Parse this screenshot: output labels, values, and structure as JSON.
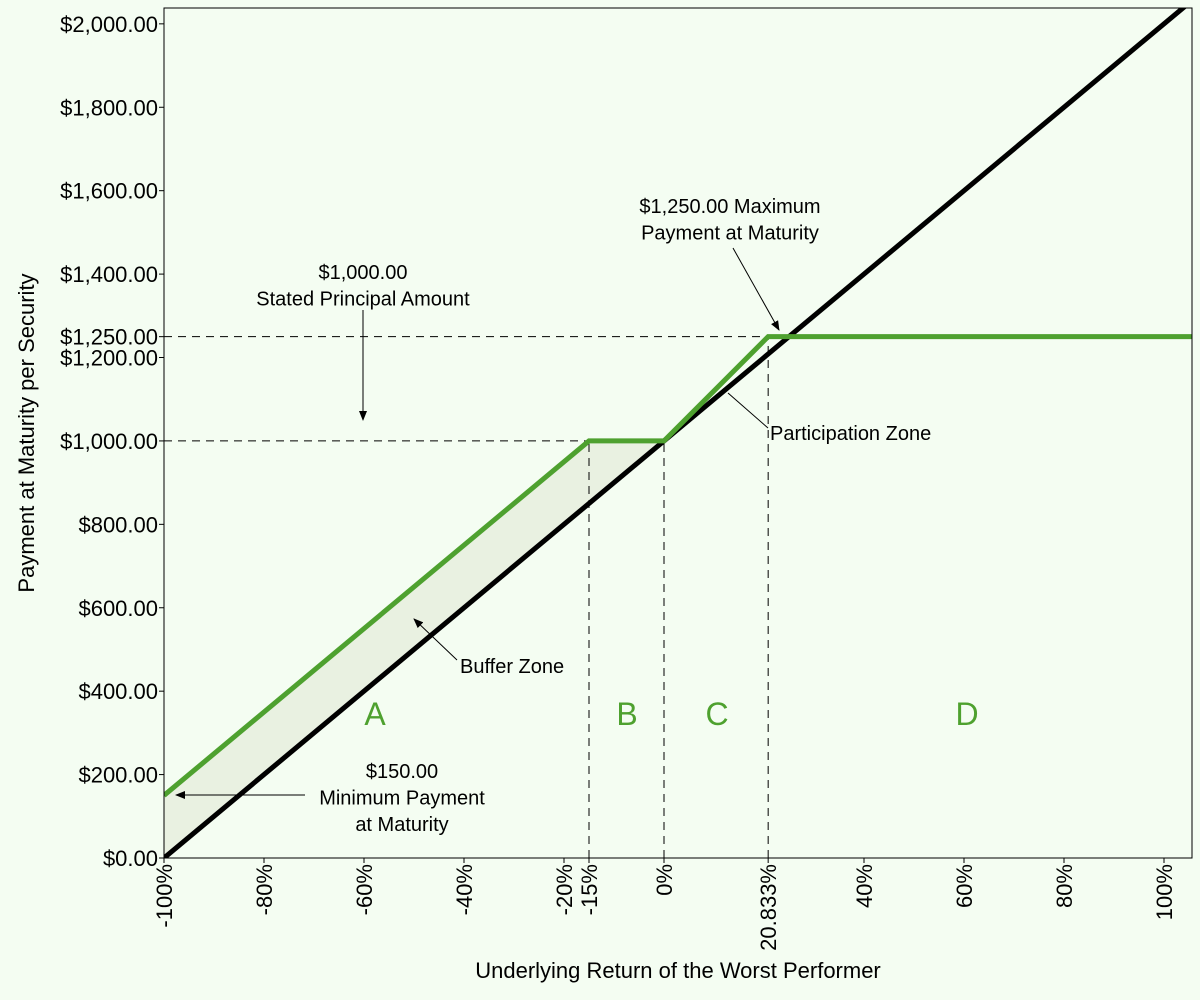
{
  "chart_data": {
    "type": "line",
    "x_label": "Underlying Return of the Worst Performer",
    "y_label": "Payment at Maturity per Security",
    "xlim": [
      -100,
      105.6
    ],
    "ylim": [
      0,
      2038
    ],
    "xticks": [
      {
        "value": -100,
        "label": "-100%"
      },
      {
        "value": -80,
        "label": "-80%"
      },
      {
        "value": -60,
        "label": "-60%"
      },
      {
        "value": -40,
        "label": "-40%"
      },
      {
        "value": -20,
        "label": "-20%"
      },
      {
        "value": -15,
        "label": "-15%"
      },
      {
        "value": 0,
        "label": "0%"
      },
      {
        "value": 20.833,
        "label": "20.833%"
      },
      {
        "value": 40,
        "label": "40%"
      },
      {
        "value": 60,
        "label": "60%"
      },
      {
        "value": 80,
        "label": "80%"
      },
      {
        "value": 100,
        "label": "100%"
      }
    ],
    "yticks": [
      {
        "value": 0,
        "label": "$0.00"
      },
      {
        "value": 200,
        "label": "$200.00"
      },
      {
        "value": 400,
        "label": "$400.00"
      },
      {
        "value": 600,
        "label": "$600.00"
      },
      {
        "value": 800,
        "label": "$800.00"
      },
      {
        "value": 1000,
        "label": "$1,000.00"
      },
      {
        "value": 1200,
        "label": "$1,200.00"
      },
      {
        "value": 1250,
        "label": "$1,250.00"
      },
      {
        "value": 1400,
        "label": "$1,400.00"
      },
      {
        "value": 1600,
        "label": "$1,600.00"
      },
      {
        "value": 1800,
        "label": "$1,800.00"
      },
      {
        "value": 2000,
        "label": "$2,000.00"
      }
    ],
    "series": [
      {
        "color": "#000000",
        "x": [
          -100,
          105.6
        ],
        "values": [
          0,
          2056
        ]
      },
      {
        "color": "#4ea12f",
        "x": [
          -100,
          -15,
          0,
          20.833,
          105.6
        ],
        "values": [
          150,
          1000,
          1000,
          1250,
          1250
        ]
      }
    ],
    "annotations": [
      {
        "lines": [
          "$1,000.00",
          "Stated Principal Amount"
        ]
      },
      {
        "lines": [
          "$1,250.00 Maximum",
          "Payment at Maturity"
        ]
      },
      {
        "lines": [
          "Participation Zone"
        ]
      },
      {
        "lines": [
          "Buffer Zone"
        ]
      },
      {
        "lines": [
          "$150.00",
          "Minimum Payment",
          "at Maturity"
        ]
      }
    ],
    "zone_labels": [
      "A",
      "B",
      "C",
      "D"
    ]
  }
}
